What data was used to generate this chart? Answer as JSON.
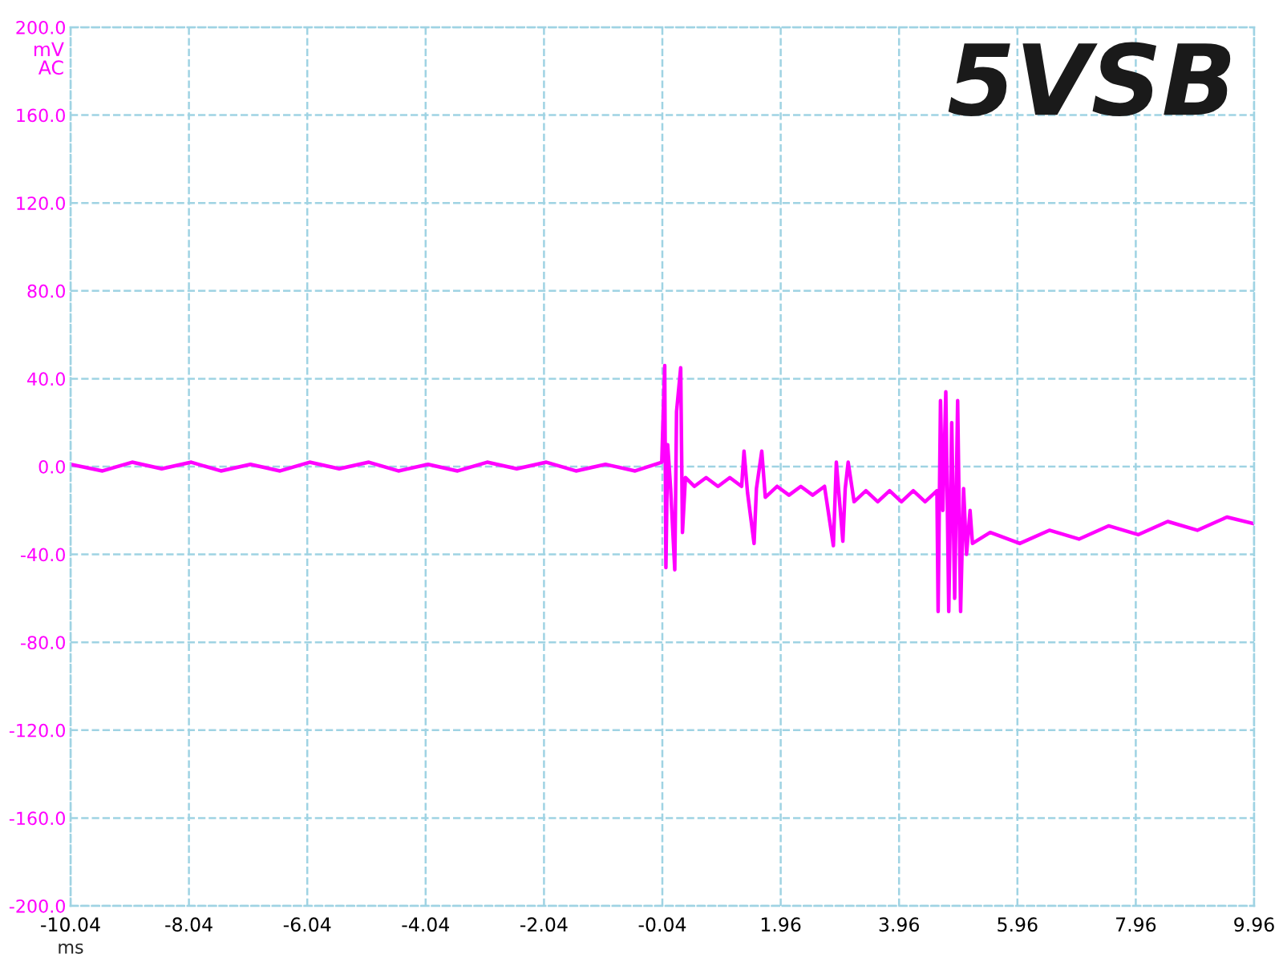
{
  "chart_data": {
    "type": "line",
    "title": "5VSB",
    "xlabel": "ms",
    "ylabel": "mV\nAC",
    "xlim": [
      -10.04,
      9.96
    ],
    "xticks": [
      -10.04,
      -8.04,
      -6.04,
      -4.04,
      -2.04,
      -0.04,
      1.96,
      3.96,
      5.96,
      7.96,
      9.96
    ],
    "ylim": [
      -200,
      200
    ],
    "yticks": [
      {
        "value": -200,
        "label": "-200.0"
      },
      {
        "value": -160,
        "label": "-160.0"
      },
      {
        "value": -120,
        "label": "-120.0"
      },
      {
        "value": -80,
        "label": "-80.0"
      },
      {
        "value": -40,
        "label": "-40.0"
      },
      {
        "value": 0,
        "label": "0.0"
      },
      {
        "value": 40,
        "label": "40.0"
      },
      {
        "value": 80,
        "label": "80.0"
      },
      {
        "value": 120,
        "label": "120.0"
      },
      {
        "value": 160,
        "label": "160.0"
      },
      {
        "value": 200,
        "label": "200.0"
      }
    ],
    "grid": true,
    "line_style": "solid",
    "marker": "none",
    "series": [
      {
        "color": "#ff00ff",
        "x": [
          -10.04,
          -9.5,
          -9.0,
          -8.5,
          -8.0,
          -7.5,
          -7.0,
          -6.5,
          -6.0,
          -5.5,
          -5.0,
          -4.5,
          -4.0,
          -3.5,
          -3.0,
          -2.5,
          -2.0,
          -1.5,
          -1.0,
          -0.5,
          -0.05,
          0.0,
          0.02,
          0.05,
          0.1,
          0.17,
          0.2,
          0.27,
          0.3,
          0.35,
          0.5,
          0.7,
          0.9,
          1.1,
          1.3,
          1.34,
          1.4,
          1.51,
          1.55,
          1.64,
          1.7,
          1.9,
          2.1,
          2.3,
          2.5,
          2.7,
          2.85,
          2.9,
          3.01,
          3.05,
          3.1,
          3.2,
          3.4,
          3.6,
          3.8,
          4.0,
          4.2,
          4.4,
          4.6,
          4.62,
          4.66,
          4.7,
          4.75,
          4.8,
          4.85,
          4.9,
          4.95,
          5.0,
          5.05,
          5.1,
          5.16,
          5.2,
          5.5,
          6.0,
          6.5,
          7.0,
          7.5,
          8.0,
          8.5,
          9.0,
          9.5,
          9.96
        ],
        "values": [
          1,
          -2,
          2,
          -1,
          2,
          -2,
          1,
          -2,
          2,
          -1,
          2,
          -2,
          1,
          -2,
          2,
          -1,
          2,
          -2,
          1,
          -2,
          2,
          46,
          -46,
          10,
          -10,
          -47,
          25,
          45,
          -30,
          -5,
          -9,
          -5,
          -9,
          -5,
          -9,
          7,
          -12,
          -35,
          -10,
          7,
          -14,
          -9,
          -13,
          -9,
          -13,
          -9,
          -36,
          2,
          -34,
          -10,
          2,
          -16,
          -11,
          -16,
          -11,
          -16,
          -11,
          -16,
          -11,
          -66,
          30,
          -20,
          34,
          -66,
          20,
          -60,
          30,
          -66,
          -10,
          -40,
          -20,
          -35,
          -30,
          -35,
          -29,
          -33,
          -27,
          -31,
          -25,
          -29,
          -23,
          -26
        ]
      }
    ]
  }
}
